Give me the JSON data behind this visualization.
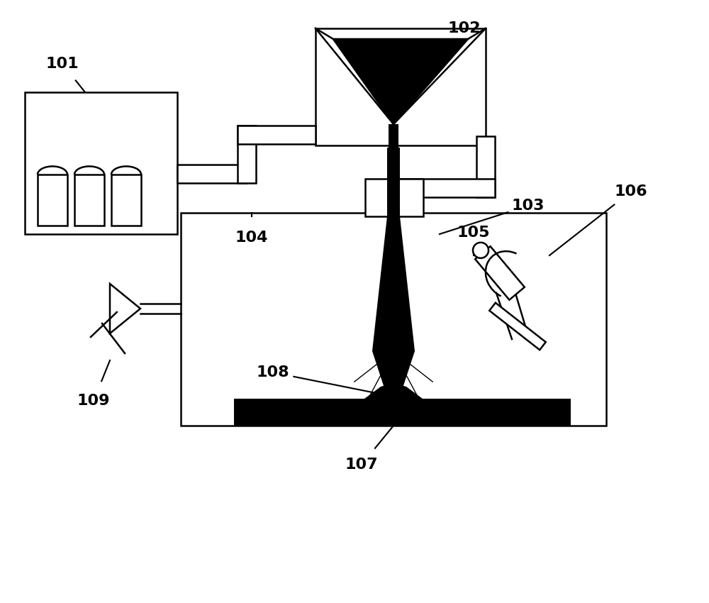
{
  "bg_color": "#ffffff",
  "lc": "#000000",
  "blk": "#000000",
  "wht": "#ffffff",
  "fig_w": 10.0,
  "fig_h": 8.5,
  "dpi": 100,
  "lw": 1.8,
  "label_fontsize": 16
}
